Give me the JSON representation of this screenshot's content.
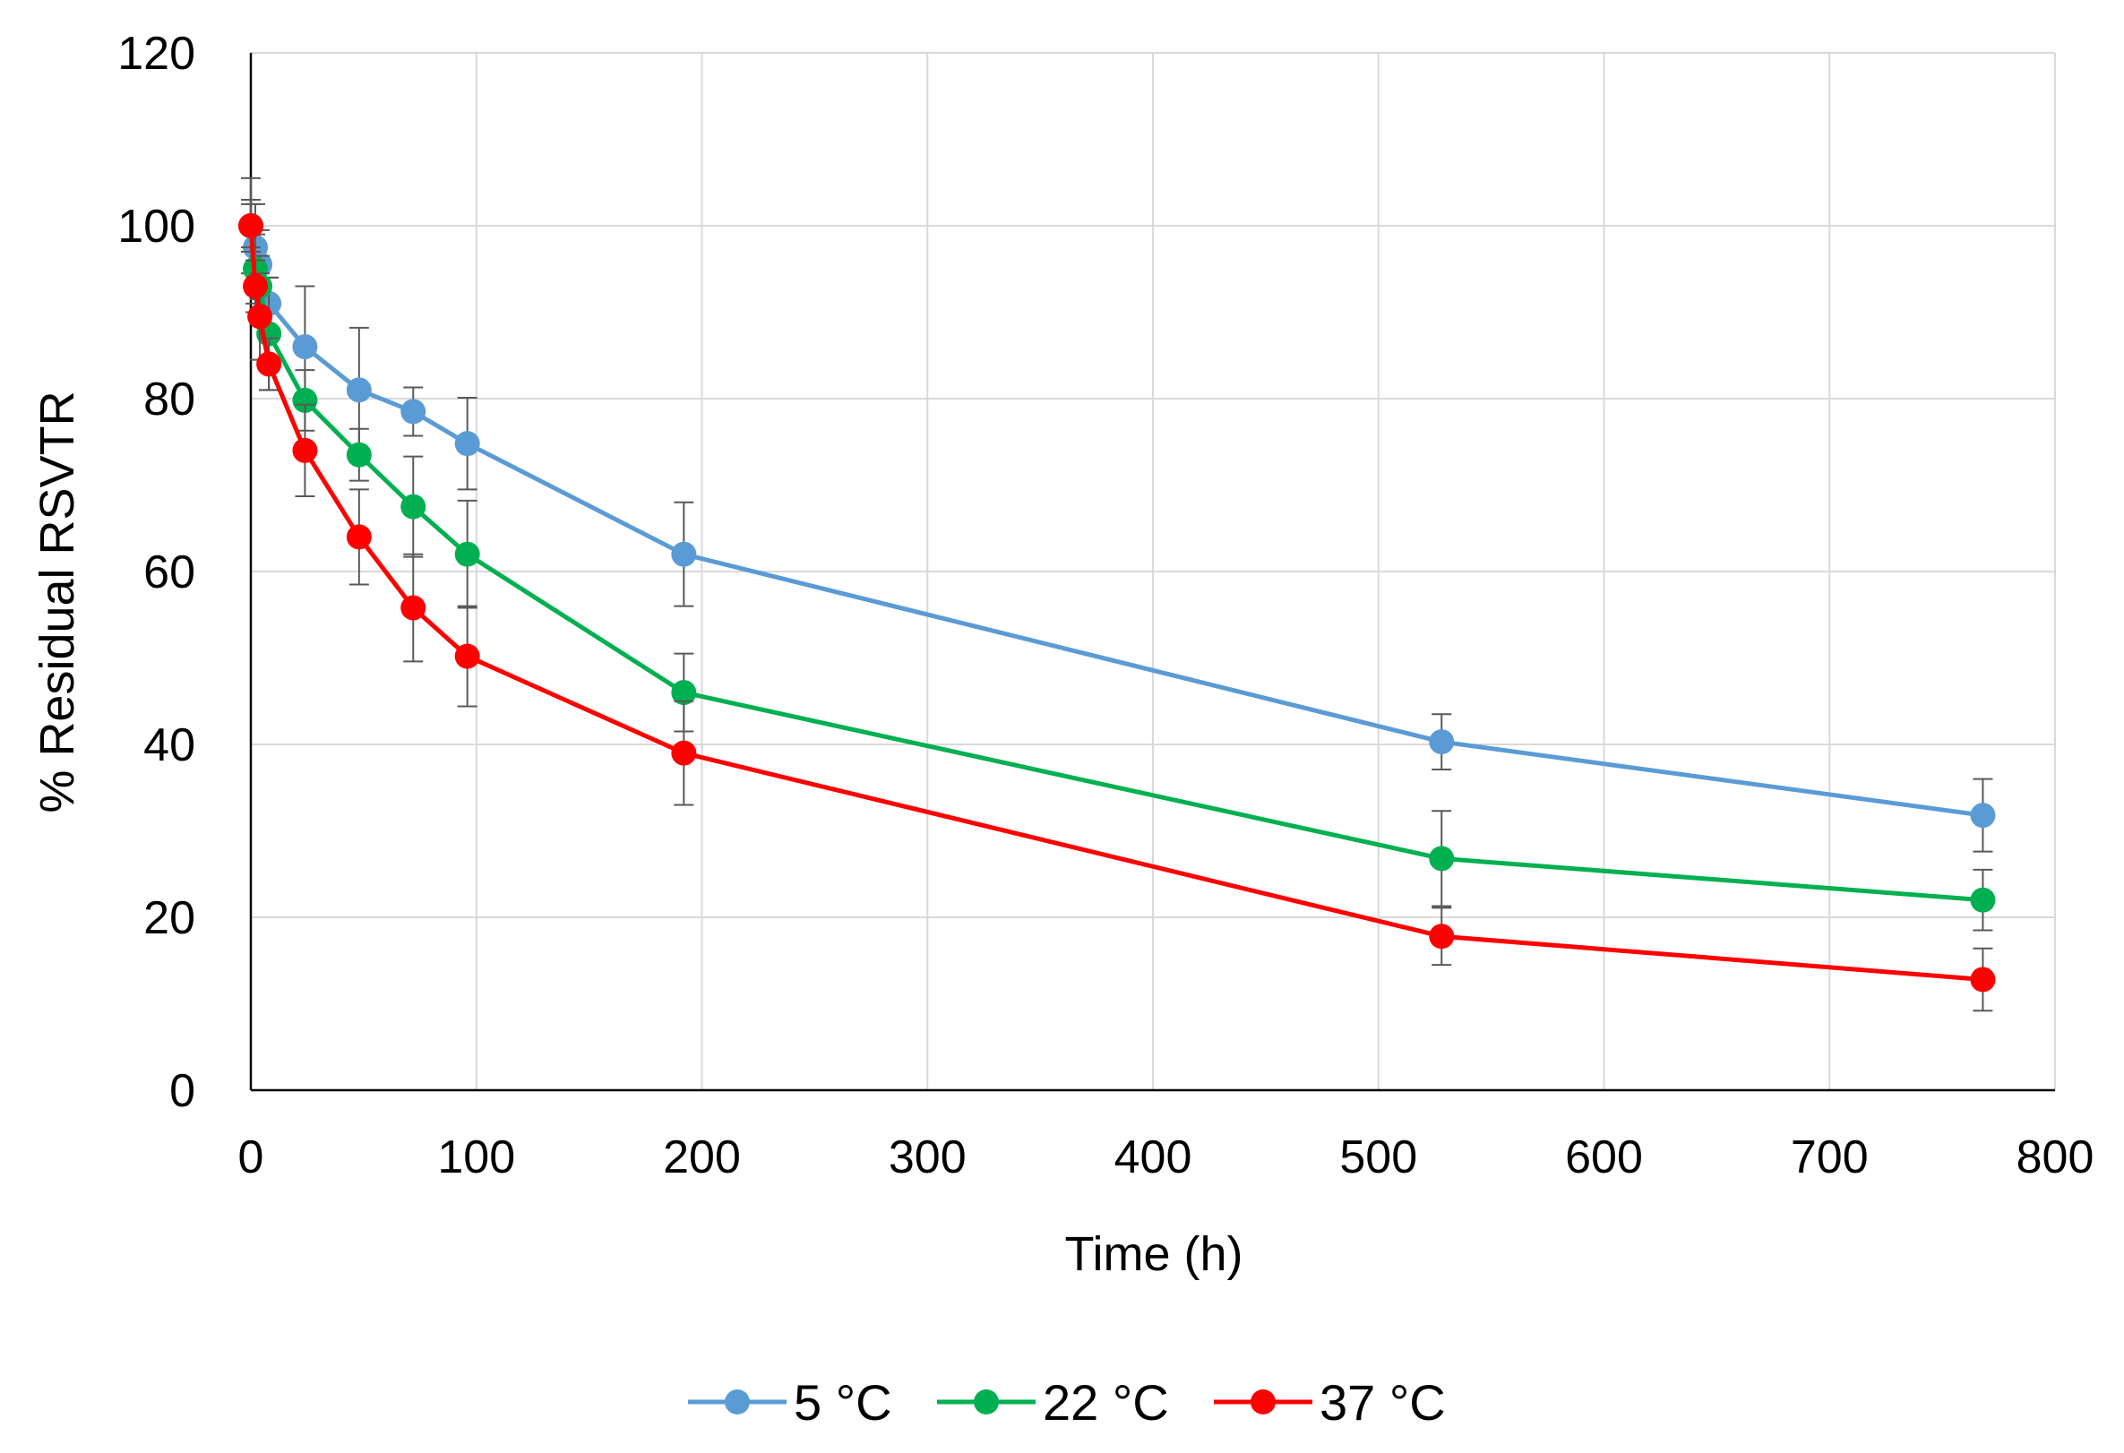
{
  "chart_data": {
    "type": "line",
    "title": "",
    "xlabel": "Time (h)",
    "ylabel": "% Residual RSVTR",
    "xlim": [
      0,
      800
    ],
    "ylim": [
      0,
      120
    ],
    "xticks": [
      0,
      100,
      200,
      300,
      400,
      500,
      600,
      700,
      800
    ],
    "yticks": [
      0,
      20,
      40,
      60,
      80,
      100,
      120
    ],
    "xtick_labels": [
      "0",
      "100",
      "200",
      "300",
      "400",
      "500",
      "600",
      "700",
      "800"
    ],
    "ytick_labels": [
      "0",
      "20",
      "40",
      "60",
      "80",
      "100",
      "120"
    ],
    "grid": true,
    "legend_position": "bottom-center",
    "series": [
      {
        "name": "5 °C",
        "color": "#5b9bd5",
        "x": [
          0,
          2,
          4,
          8,
          24,
          48,
          72,
          96,
          192,
          528,
          768
        ],
        "y": [
          100,
          97.5,
          95.5,
          91,
          86,
          81,
          78.5,
          74.8,
          62,
          40.3,
          31.8
        ],
        "err": [
          5.5,
          5,
          4,
          3,
          7,
          7.2,
          2.8,
          5.3,
          6,
          3.2,
          4.2
        ]
      },
      {
        "name": "22 °C",
        "color": "#00b050",
        "x": [
          0,
          2,
          4,
          8,
          24,
          48,
          72,
          96,
          192,
          528,
          768
        ],
        "y": [
          100,
          95,
          93,
          87.5,
          79.8,
          73.5,
          67.5,
          62,
          46,
          26.8,
          22
        ],
        "err": [
          3,
          4,
          3.5,
          6.5,
          3.5,
          3,
          5.8,
          6.2,
          4.5,
          5.5,
          3.5
        ]
      },
      {
        "name": "37 °C",
        "color": "#ff0000",
        "x": [
          0,
          2,
          4,
          8,
          24,
          48,
          72,
          96,
          192,
          528,
          768
        ],
        "y": [
          100,
          93,
          89.5,
          84,
          74,
          64,
          55.8,
          50.2,
          39,
          17.8,
          12.8
        ],
        "err": [
          2.5,
          3,
          5,
          3,
          5.3,
          5.5,
          6.2,
          5.8,
          6,
          3.3,
          3.6
        ]
      }
    ]
  }
}
